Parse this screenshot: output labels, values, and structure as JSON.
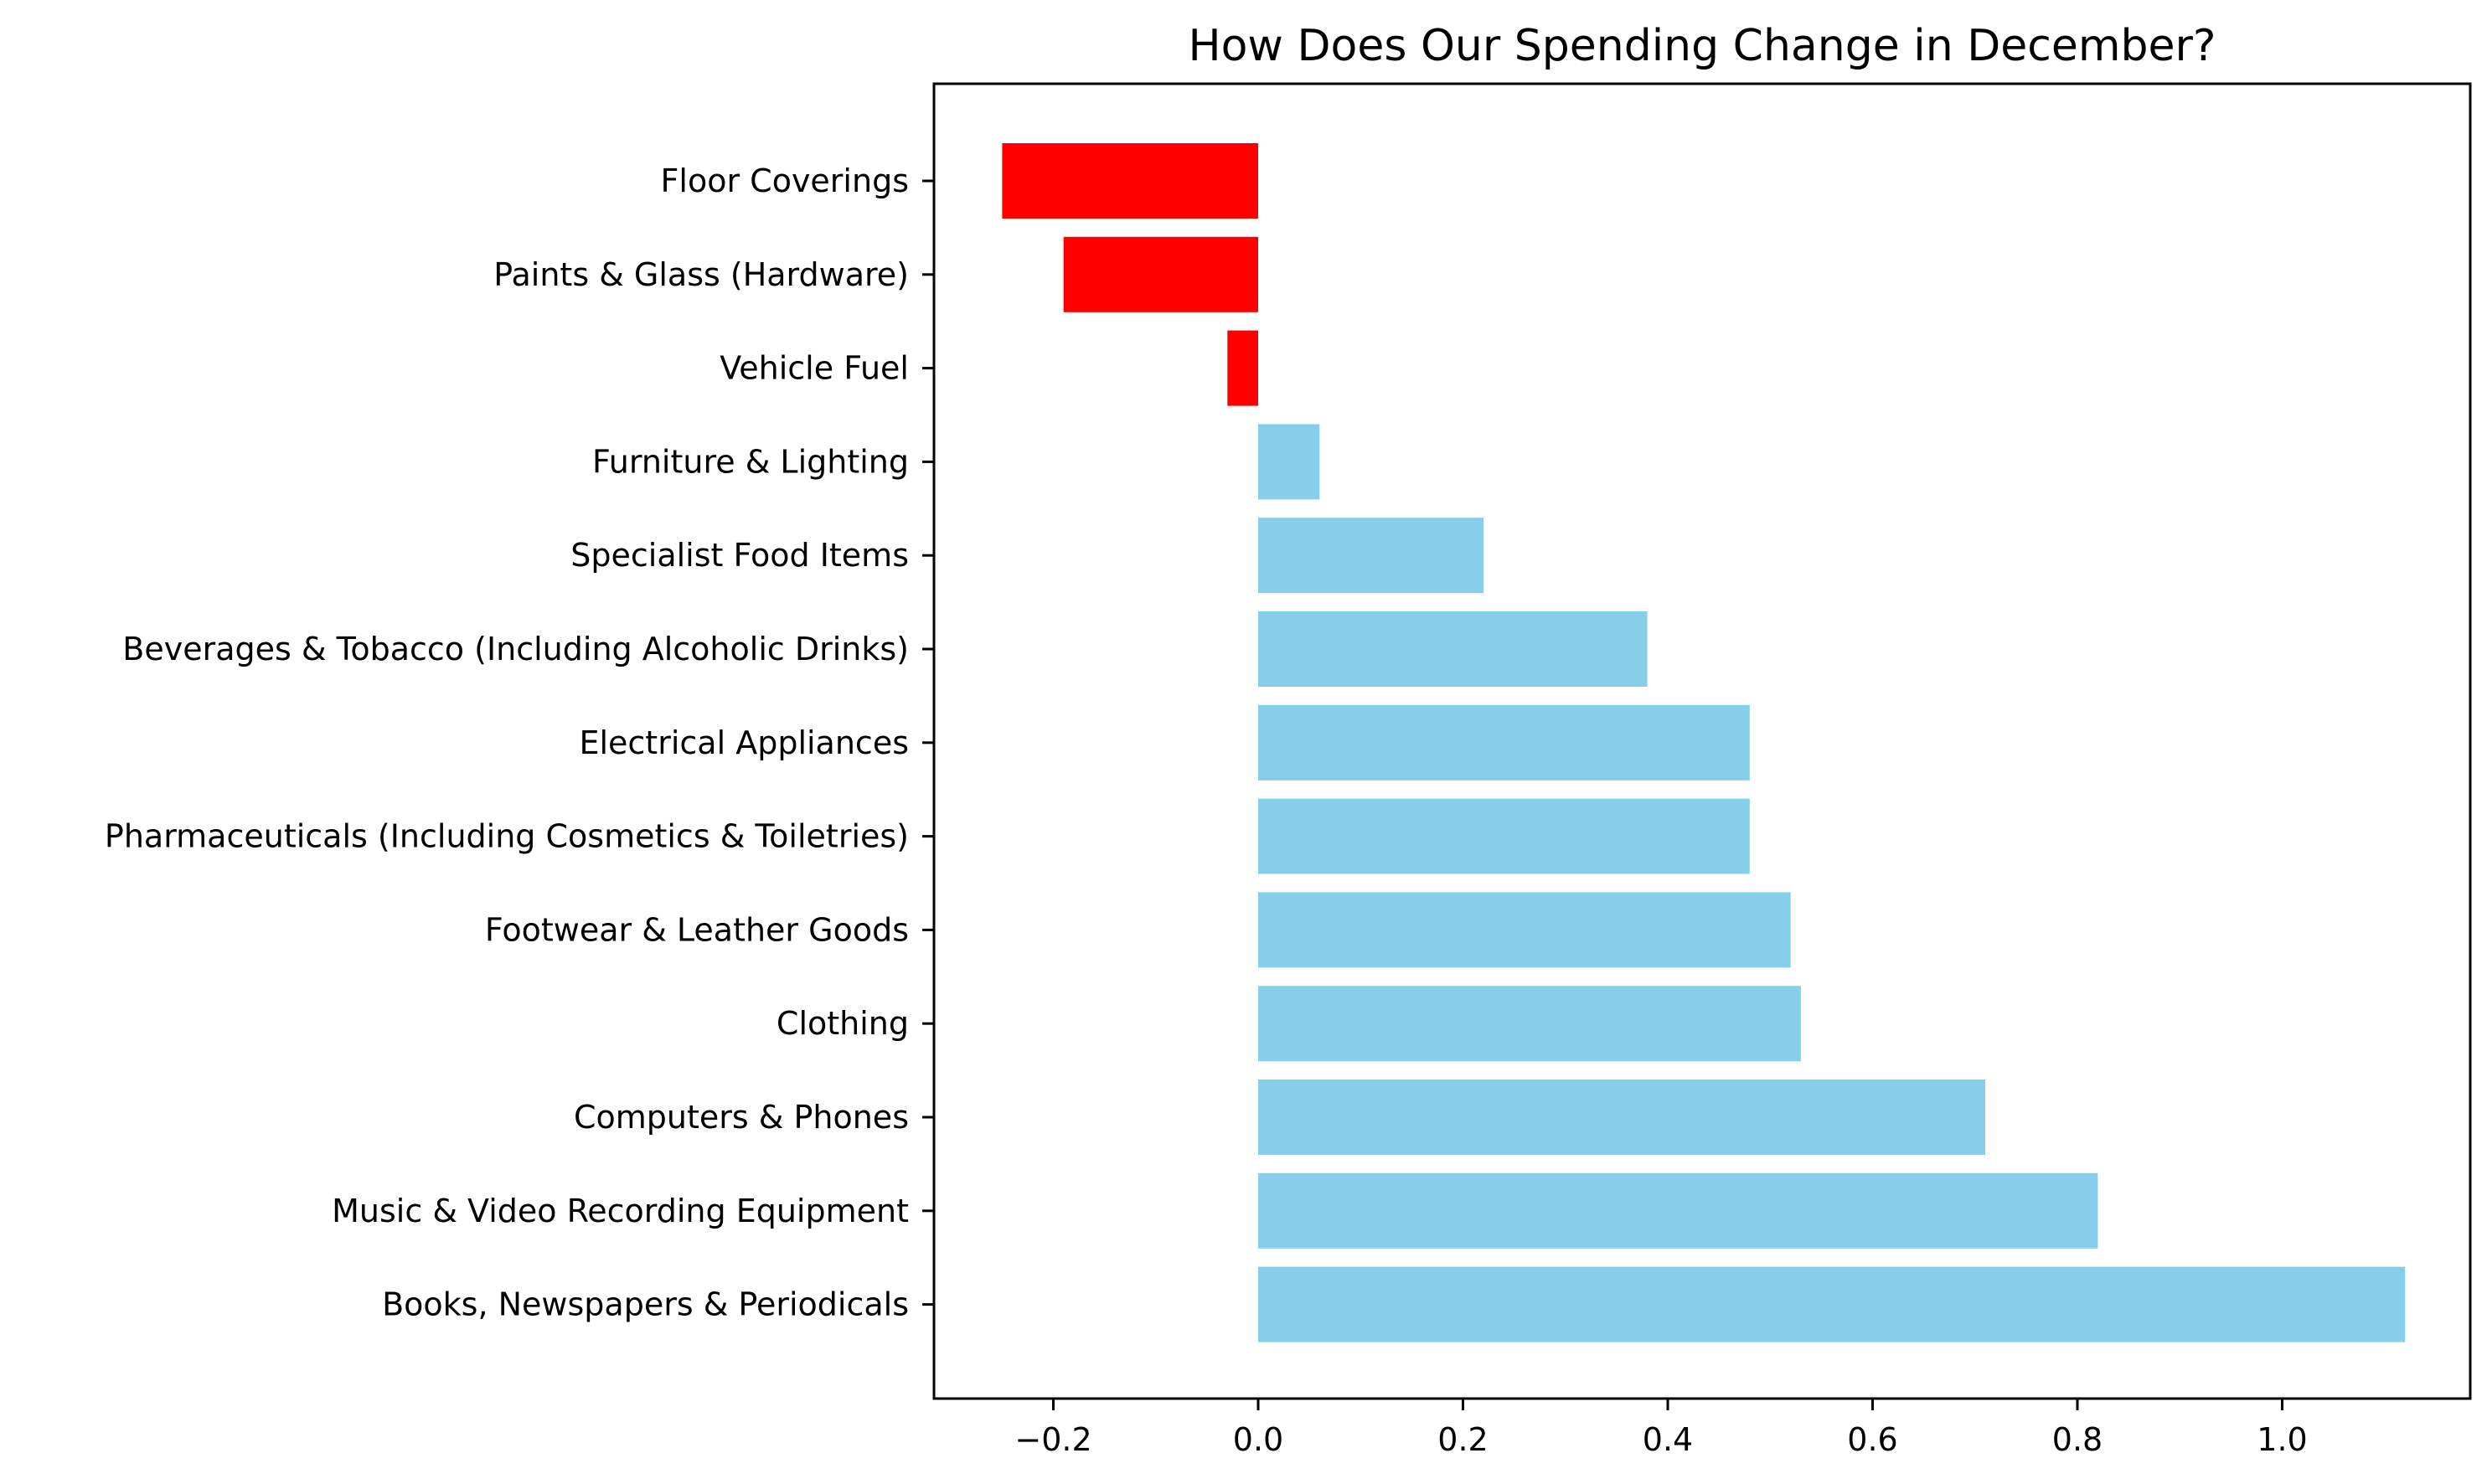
{
  "chart_data": {
    "type": "bar",
    "orientation": "horizontal",
    "title": "How Does Our Spending Change in December?",
    "xlabel": "",
    "ylabel": "",
    "xlim": [
      -0.32,
      1.17
    ],
    "xticks": [
      -0.2,
      0.0,
      0.2,
      0.4,
      0.6,
      0.8,
      1.0
    ],
    "xtick_labels": [
      "−0.2",
      "0.0",
      "0.2",
      "0.4",
      "0.6",
      "0.8",
      "1.0"
    ],
    "grid": false,
    "legend": "none",
    "categories": [
      "Floor Coverings",
      "Paints & Glass (Hardware)",
      "Vehicle Fuel",
      "Furniture & Lighting",
      "Specialist Food Items",
      "Beverages & Tobacco (Including Alcoholic Drinks)",
      "Electrical Appliances",
      "Pharmaceuticals (Including Cosmetics & Toiletries)",
      "Footwear & Leather Goods",
      "Clothing",
      "Computers & Phones",
      "Music & Video Recording Equipment",
      "Books, Newspapers & Periodicals"
    ],
    "values": [
      -0.25,
      -0.19,
      -0.03,
      0.06,
      0.22,
      0.38,
      0.48,
      0.48,
      0.52,
      0.53,
      0.71,
      0.82,
      1.12
    ],
    "colors": {
      "negative": "#ff0000",
      "positive": "#87ceeb"
    }
  }
}
